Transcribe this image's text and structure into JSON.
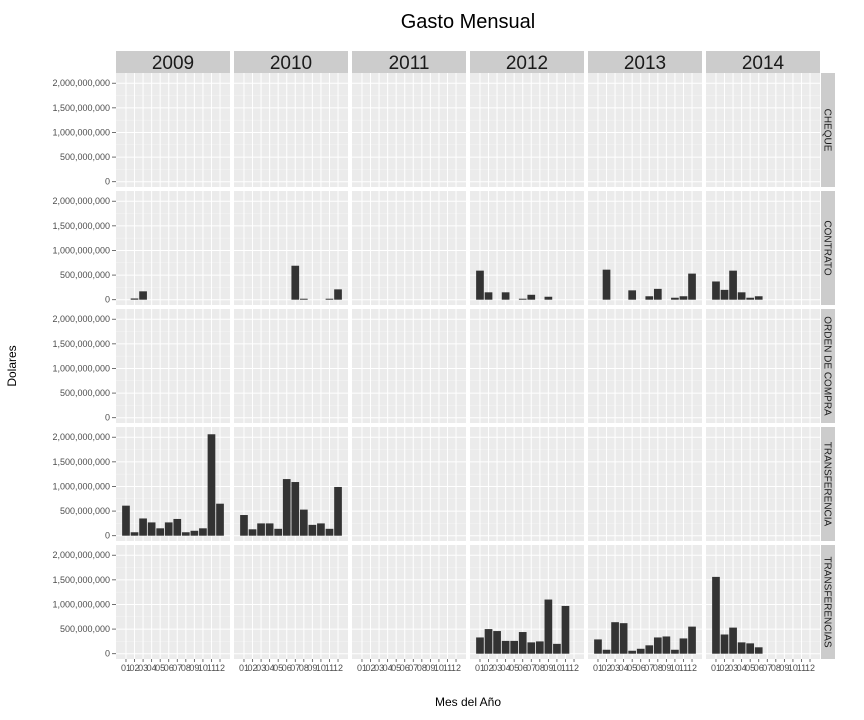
{
  "chart_data": {
    "type": "bar",
    "title": "Gasto Mensual",
    "xlabel": "Mes del Año",
    "ylabel": "Dolares",
    "years": [
      "2009",
      "2010",
      "2011",
      "2012",
      "2013",
      "2014"
    ],
    "months": [
      "01",
      "02",
      "03",
      "04",
      "05",
      "06",
      "07",
      "08",
      "09",
      "10",
      "11",
      "12"
    ],
    "ylim": [
      0,
      2100000000
    ],
    "yticks": [
      0,
      500000000,
      1000000000,
      1500000000,
      2000000000
    ],
    "ytick_labels": [
      "0",
      "500,000,000",
      "1,000,000,000",
      "1,500,000,000",
      "2,000,000,000"
    ],
    "grid": true,
    "facets": [
      {
        "row": "CHEQUE",
        "values": {
          "2009": [
            0,
            0,
            0,
            0,
            0,
            0,
            0,
            0,
            0,
            0,
            0,
            0
          ],
          "2010": [
            0,
            0,
            0,
            0,
            0,
            0,
            0,
            0,
            0,
            0,
            0,
            0
          ],
          "2011": [
            0,
            0,
            0,
            0,
            0,
            0,
            0,
            0,
            0,
            0,
            0,
            0
          ],
          "2012": [
            0,
            0,
            0,
            0,
            0,
            0,
            0,
            0,
            0,
            0,
            0,
            0
          ],
          "2013": [
            0,
            0,
            0,
            0,
            0,
            0,
            0,
            0,
            0,
            0,
            0,
            0
          ],
          "2014": [
            0,
            0,
            0,
            0,
            0,
            0,
            0,
            0,
            0,
            0,
            0,
            0
          ]
        }
      },
      {
        "row": "CONTRATO",
        "values": {
          "2009": [
            0,
            25000000,
            170000000,
            0,
            0,
            0,
            0,
            0,
            0,
            0,
            0,
            0
          ],
          "2010": [
            0,
            0,
            0,
            0,
            0,
            0,
            690000000,
            20000000,
            0,
            0,
            20000000,
            210000000
          ],
          "2011": [
            0,
            0,
            0,
            0,
            0,
            0,
            0,
            0,
            0,
            0,
            0,
            0
          ],
          "2012": [
            590000000,
            150000000,
            0,
            150000000,
            0,
            20000000,
            100000000,
            0,
            60000000,
            0,
            0,
            0
          ],
          "2013": [
            0,
            610000000,
            0,
            0,
            190000000,
            0,
            70000000,
            220000000,
            0,
            40000000,
            70000000,
            530000000
          ],
          "2014": [
            370000000,
            200000000,
            590000000,
            150000000,
            40000000,
            70000000,
            0,
            0,
            0,
            0,
            0,
            0
          ]
        }
      },
      {
        "row": "ORDEN DE COMPRA",
        "values": {
          "2009": [
            0,
            0,
            0,
            0,
            0,
            0,
            0,
            0,
            0,
            0,
            0,
            0
          ],
          "2010": [
            0,
            0,
            0,
            0,
            0,
            0,
            0,
            0,
            0,
            0,
            0,
            0
          ],
          "2011": [
            0,
            0,
            0,
            0,
            0,
            0,
            0,
            0,
            0,
            0,
            0,
            0
          ],
          "2012": [
            0,
            0,
            0,
            0,
            0,
            0,
            0,
            0,
            0,
            0,
            0,
            0
          ],
          "2013": [
            0,
            0,
            0,
            0,
            0,
            0,
            0,
            0,
            0,
            0,
            0,
            0
          ],
          "2014": [
            0,
            0,
            0,
            0,
            0,
            0,
            0,
            0,
            0,
            0,
            0,
            0
          ]
        }
      },
      {
        "row": "TRANSFERENCIA",
        "values": {
          "2009": [
            610000000,
            70000000,
            350000000,
            270000000,
            150000000,
            270000000,
            340000000,
            70000000,
            100000000,
            150000000,
            2060000000,
            650000000
          ],
          "2010": [
            420000000,
            130000000,
            250000000,
            250000000,
            140000000,
            1150000000,
            1090000000,
            530000000,
            220000000,
            250000000,
            140000000,
            990000000
          ],
          "2011": [
            0,
            0,
            0,
            0,
            0,
            0,
            0,
            0,
            0,
            0,
            0,
            0
          ],
          "2012": [
            0,
            0,
            0,
            0,
            0,
            0,
            0,
            0,
            0,
            0,
            0,
            0
          ],
          "2013": [
            0,
            0,
            0,
            0,
            0,
            0,
            0,
            0,
            0,
            0,
            0,
            0
          ],
          "2014": [
            0,
            0,
            0,
            0,
            0,
            0,
            0,
            0,
            0,
            0,
            0,
            0
          ]
        }
      },
      {
        "row": "TRANSFERENCIAS",
        "values": {
          "2009": [
            0,
            0,
            0,
            0,
            0,
            0,
            0,
            0,
            0,
            0,
            0,
            0
          ],
          "2010": [
            0,
            0,
            0,
            0,
            0,
            0,
            0,
            0,
            0,
            0,
            0,
            0
          ],
          "2011": [
            0,
            0,
            0,
            0,
            0,
            0,
            0,
            0,
            0,
            0,
            0,
            0
          ],
          "2012": [
            330000000,
            500000000,
            460000000,
            260000000,
            260000000,
            440000000,
            230000000,
            250000000,
            1100000000,
            200000000,
            970000000,
            0
          ],
          "2013": [
            290000000,
            80000000,
            640000000,
            620000000,
            60000000,
            100000000,
            170000000,
            330000000,
            350000000,
            80000000,
            310000000,
            550000000
          ],
          "2014": [
            1560000000,
            390000000,
            530000000,
            230000000,
            210000000,
            130000000,
            0,
            0,
            0,
            0,
            0,
            0
          ]
        }
      }
    ],
    "colors": {
      "bar": "#333333",
      "panel": "#ebebeb",
      "grid_major": "#ffffff",
      "grid_minor": "#f5f5f5",
      "strip": "#cccccc",
      "tick": "#4d4d4d"
    }
  }
}
